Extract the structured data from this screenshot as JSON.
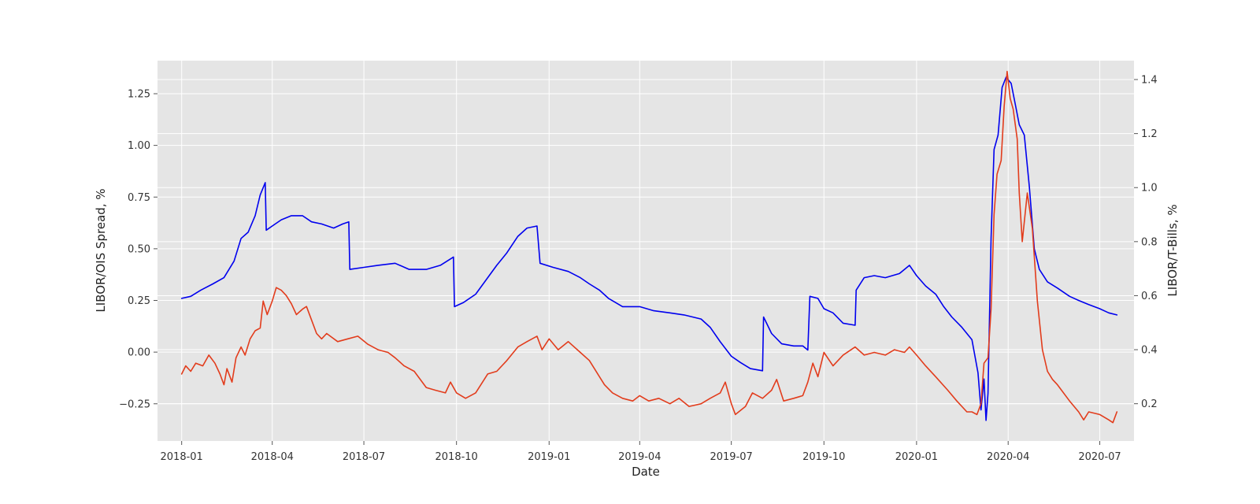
{
  "chart_data": {
    "type": "line",
    "title": "",
    "xlabel": "Date",
    "ylabel_left": "LIBOR/OIS Spread, %",
    "ylabel_right": "LIBOR/T-Bills, %",
    "x_ticks": [
      "2018-01",
      "2018-04",
      "2018-07",
      "2018-10",
      "2019-01",
      "2019-04",
      "2019-07",
      "2019-10",
      "2020-01",
      "2020-04",
      "2020-07"
    ],
    "y_left_ticks": [
      "−0.25",
      "0.00",
      "0.25",
      "0.50",
      "0.75",
      "1.00",
      "1.25"
    ],
    "y_right_ticks": [
      "0.2",
      "0.4",
      "0.6",
      "0.8",
      "1.0",
      "1.2",
      "1.4"
    ],
    "xlim": [
      "2017-12-08",
      "2020-08-04"
    ],
    "ylim_left": [
      -0.43,
      1.41
    ],
    "ylim_right": [
      0.062,
      1.47
    ],
    "grid": true,
    "background": "#e5e5e5",
    "series": [
      {
        "axis": "left",
        "color": "#0000ee",
        "points": [
          [
            "2018-01-01",
            0.26
          ],
          [
            "2018-01-10",
            0.27
          ],
          [
            "2018-01-20",
            0.3
          ],
          [
            "2018-02-01",
            0.33
          ],
          [
            "2018-02-12",
            0.36
          ],
          [
            "2018-02-22",
            0.44
          ],
          [
            "2018-03-01",
            0.55
          ],
          [
            "2018-03-08",
            0.58
          ],
          [
            "2018-03-15",
            0.66
          ],
          [
            "2018-03-20",
            0.76
          ],
          [
            "2018-03-25",
            0.82
          ],
          [
            "2018-03-26",
            0.59
          ],
          [
            "2018-04-01",
            0.61
          ],
          [
            "2018-04-10",
            0.64
          ],
          [
            "2018-04-20",
            0.66
          ],
          [
            "2018-05-01",
            0.66
          ],
          [
            "2018-05-10",
            0.63
          ],
          [
            "2018-05-20",
            0.62
          ],
          [
            "2018-06-01",
            0.6
          ],
          [
            "2018-06-10",
            0.62
          ],
          [
            "2018-06-16",
            0.63
          ],
          [
            "2018-06-17",
            0.4
          ],
          [
            "2018-07-01",
            0.41
          ],
          [
            "2018-07-15",
            0.42
          ],
          [
            "2018-08-01",
            0.43
          ],
          [
            "2018-08-15",
            0.4
          ],
          [
            "2018-09-01",
            0.4
          ],
          [
            "2018-09-15",
            0.42
          ],
          [
            "2018-09-28",
            0.46
          ],
          [
            "2018-09-29",
            0.22
          ],
          [
            "2018-10-08",
            0.24
          ],
          [
            "2018-10-20",
            0.28
          ],
          [
            "2018-11-01",
            0.36
          ],
          [
            "2018-11-10",
            0.42
          ],
          [
            "2018-11-20",
            0.48
          ],
          [
            "2018-12-01",
            0.56
          ],
          [
            "2018-12-10",
            0.6
          ],
          [
            "2018-12-20",
            0.61
          ],
          [
            "2018-12-23",
            0.43
          ],
          [
            "2019-01-05",
            0.41
          ],
          [
            "2019-01-20",
            0.39
          ],
          [
            "2019-02-01",
            0.36
          ],
          [
            "2019-02-10",
            0.33
          ],
          [
            "2019-02-20",
            0.3
          ],
          [
            "2019-03-01",
            0.26
          ],
          [
            "2019-03-15",
            0.22
          ],
          [
            "2019-04-01",
            0.22
          ],
          [
            "2019-04-15",
            0.2
          ],
          [
            "2019-05-01",
            0.19
          ],
          [
            "2019-05-15",
            0.18
          ],
          [
            "2019-06-01",
            0.16
          ],
          [
            "2019-06-10",
            0.12
          ],
          [
            "2019-06-20",
            0.05
          ],
          [
            "2019-07-01",
            -0.02
          ],
          [
            "2019-07-10",
            -0.05
          ],
          [
            "2019-07-20",
            -0.08
          ],
          [
            "2019-08-01",
            -0.09
          ],
          [
            "2019-08-02",
            0.17
          ],
          [
            "2019-08-10",
            0.09
          ],
          [
            "2019-08-20",
            0.04
          ],
          [
            "2019-09-01",
            0.03
          ],
          [
            "2019-09-10",
            0.03
          ],
          [
            "2019-09-15",
            0.01
          ],
          [
            "2019-09-17",
            0.27
          ],
          [
            "2019-09-25",
            0.26
          ],
          [
            "2019-10-01",
            0.21
          ],
          [
            "2019-10-10",
            0.19
          ],
          [
            "2019-10-20",
            0.14
          ],
          [
            "2019-11-01",
            0.13
          ],
          [
            "2019-11-02",
            0.3
          ],
          [
            "2019-11-10",
            0.36
          ],
          [
            "2019-11-20",
            0.37
          ],
          [
            "2019-12-01",
            0.36
          ],
          [
            "2019-12-15",
            0.38
          ],
          [
            "2019-12-25",
            0.42
          ],
          [
            "2020-01-01",
            0.37
          ],
          [
            "2020-01-10",
            0.32
          ],
          [
            "2020-01-20",
            0.28
          ],
          [
            "2020-01-28",
            0.22
          ],
          [
            "2020-02-05",
            0.17
          ],
          [
            "2020-02-15",
            0.12
          ],
          [
            "2020-02-25",
            0.06
          ],
          [
            "2020-03-02",
            -0.1
          ],
          [
            "2020-03-05",
            -0.28
          ],
          [
            "2020-03-08",
            -0.13
          ],
          [
            "2020-03-10",
            -0.33
          ],
          [
            "2020-03-12",
            -0.2
          ],
          [
            "2020-03-15",
            0.55
          ],
          [
            "2020-03-18",
            0.98
          ],
          [
            "2020-03-22",
            1.05
          ],
          [
            "2020-03-26",
            1.28
          ],
          [
            "2020-03-30",
            1.33
          ],
          [
            "2020-04-04",
            1.3
          ],
          [
            "2020-04-08",
            1.2
          ],
          [
            "2020-04-12",
            1.1
          ],
          [
            "2020-04-17",
            1.05
          ],
          [
            "2020-04-22",
            0.8
          ],
          [
            "2020-04-27",
            0.5
          ],
          [
            "2020-05-02",
            0.4
          ],
          [
            "2020-05-10",
            0.34
          ],
          [
            "2020-05-20",
            0.31
          ],
          [
            "2020-06-01",
            0.27
          ],
          [
            "2020-06-10",
            0.25
          ],
          [
            "2020-06-20",
            0.23
          ],
          [
            "2020-07-01",
            0.21
          ],
          [
            "2020-07-10",
            0.19
          ],
          [
            "2020-07-18",
            0.18
          ]
        ]
      },
      {
        "axis": "right",
        "color": "#e23c1c",
        "points": [
          [
            "2018-01-01",
            0.31
          ],
          [
            "2018-01-05",
            0.34
          ],
          [
            "2018-01-10",
            0.32
          ],
          [
            "2018-01-15",
            0.35
          ],
          [
            "2018-01-22",
            0.34
          ],
          [
            "2018-01-28",
            0.38
          ],
          [
            "2018-02-03",
            0.35
          ],
          [
            "2018-02-08",
            0.31
          ],
          [
            "2018-02-12",
            0.27
          ],
          [
            "2018-02-15",
            0.33
          ],
          [
            "2018-02-20",
            0.28
          ],
          [
            "2018-02-24",
            0.37
          ],
          [
            "2018-03-01",
            0.41
          ],
          [
            "2018-03-05",
            0.38
          ],
          [
            "2018-03-10",
            0.44
          ],
          [
            "2018-03-15",
            0.47
          ],
          [
            "2018-03-20",
            0.48
          ],
          [
            "2018-03-23",
            0.58
          ],
          [
            "2018-03-27",
            0.53
          ],
          [
            "2018-04-01",
            0.58
          ],
          [
            "2018-04-05",
            0.63
          ],
          [
            "2018-04-10",
            0.62
          ],
          [
            "2018-04-15",
            0.6
          ],
          [
            "2018-04-20",
            0.57
          ],
          [
            "2018-04-25",
            0.53
          ],
          [
            "2018-05-01",
            0.55
          ],
          [
            "2018-05-05",
            0.56
          ],
          [
            "2018-05-10",
            0.51
          ],
          [
            "2018-05-15",
            0.46
          ],
          [
            "2018-05-20",
            0.44
          ],
          [
            "2018-05-25",
            0.46
          ],
          [
            "2018-06-05",
            0.43
          ],
          [
            "2018-06-15",
            0.44
          ],
          [
            "2018-06-25",
            0.45
          ],
          [
            "2018-07-05",
            0.42
          ],
          [
            "2018-07-15",
            0.4
          ],
          [
            "2018-07-25",
            0.39
          ],
          [
            "2018-08-01",
            0.37
          ],
          [
            "2018-08-10",
            0.34
          ],
          [
            "2018-08-20",
            0.32
          ],
          [
            "2018-09-01",
            0.26
          ],
          [
            "2018-09-10",
            0.25
          ],
          [
            "2018-09-20",
            0.24
          ],
          [
            "2018-09-25",
            0.28
          ],
          [
            "2018-10-01",
            0.24
          ],
          [
            "2018-10-10",
            0.22
          ],
          [
            "2018-10-20",
            0.24
          ],
          [
            "2018-11-01",
            0.31
          ],
          [
            "2018-11-10",
            0.32
          ],
          [
            "2018-11-20",
            0.36
          ],
          [
            "2018-12-01",
            0.41
          ],
          [
            "2018-12-10",
            0.43
          ],
          [
            "2018-12-20",
            0.45
          ],
          [
            "2018-12-25",
            0.4
          ],
          [
            "2019-01-01",
            0.44
          ],
          [
            "2019-01-10",
            0.4
          ],
          [
            "2019-01-20",
            0.43
          ],
          [
            "2019-02-01",
            0.39
          ],
          [
            "2019-02-10",
            0.36
          ],
          [
            "2019-02-15",
            0.33
          ],
          [
            "2019-02-25",
            0.27
          ],
          [
            "2019-03-05",
            0.24
          ],
          [
            "2019-03-15",
            0.22
          ],
          [
            "2019-03-25",
            0.21
          ],
          [
            "2019-04-01",
            0.23
          ],
          [
            "2019-04-10",
            0.21
          ],
          [
            "2019-04-20",
            0.22
          ],
          [
            "2019-05-01",
            0.2
          ],
          [
            "2019-05-10",
            0.22
          ],
          [
            "2019-05-20",
            0.19
          ],
          [
            "2019-06-01",
            0.2
          ],
          [
            "2019-06-10",
            0.22
          ],
          [
            "2019-06-20",
            0.24
          ],
          [
            "2019-06-25",
            0.28
          ],
          [
            "2019-07-01",
            0.2
          ],
          [
            "2019-07-05",
            0.16
          ],
          [
            "2019-07-15",
            0.19
          ],
          [
            "2019-07-22",
            0.24
          ],
          [
            "2019-08-01",
            0.22
          ],
          [
            "2019-08-10",
            0.25
          ],
          [
            "2019-08-15",
            0.29
          ],
          [
            "2019-08-22",
            0.21
          ],
          [
            "2019-09-01",
            0.22
          ],
          [
            "2019-09-10",
            0.23
          ],
          [
            "2019-09-15",
            0.28
          ],
          [
            "2019-09-20",
            0.35
          ],
          [
            "2019-09-25",
            0.3
          ],
          [
            "2019-10-01",
            0.39
          ],
          [
            "2019-10-10",
            0.34
          ],
          [
            "2019-10-20",
            0.38
          ],
          [
            "2019-11-01",
            0.41
          ],
          [
            "2019-11-10",
            0.38
          ],
          [
            "2019-11-20",
            0.39
          ],
          [
            "2019-12-01",
            0.38
          ],
          [
            "2019-12-10",
            0.4
          ],
          [
            "2019-12-20",
            0.39
          ],
          [
            "2019-12-25",
            0.41
          ],
          [
            "2020-01-01",
            0.38
          ],
          [
            "2020-01-10",
            0.34
          ],
          [
            "2020-01-20",
            0.3
          ],
          [
            "2020-02-01",
            0.25
          ],
          [
            "2020-02-10",
            0.21
          ],
          [
            "2020-02-20",
            0.17
          ],
          [
            "2020-02-25",
            0.17
          ],
          [
            "2020-03-01",
            0.16
          ],
          [
            "2020-03-05",
            0.2
          ],
          [
            "2020-03-08",
            0.35
          ],
          [
            "2020-03-12",
            0.37
          ],
          [
            "2020-03-15",
            0.55
          ],
          [
            "2020-03-18",
            0.9
          ],
          [
            "2020-03-21",
            1.05
          ],
          [
            "2020-03-25",
            1.1
          ],
          [
            "2020-03-28",
            1.3
          ],
          [
            "2020-03-31",
            1.43
          ],
          [
            "2020-04-03",
            1.33
          ],
          [
            "2020-04-06",
            1.29
          ],
          [
            "2020-04-10",
            1.18
          ],
          [
            "2020-04-12",
            0.98
          ],
          [
            "2020-04-15",
            0.8
          ],
          [
            "2020-04-20",
            0.98
          ],
          [
            "2020-04-25",
            0.85
          ],
          [
            "2020-04-30",
            0.58
          ],
          [
            "2020-05-05",
            0.4
          ],
          [
            "2020-05-10",
            0.32
          ],
          [
            "2020-05-15",
            0.29
          ],
          [
            "2020-05-20",
            0.27
          ],
          [
            "2020-06-01",
            0.21
          ],
          [
            "2020-06-10",
            0.17
          ],
          [
            "2020-06-15",
            0.14
          ],
          [
            "2020-06-20",
            0.17
          ],
          [
            "2020-07-01",
            0.16
          ],
          [
            "2020-07-10",
            0.14
          ],
          [
            "2020-07-14",
            0.13
          ],
          [
            "2020-07-18",
            0.17
          ]
        ]
      }
    ]
  }
}
